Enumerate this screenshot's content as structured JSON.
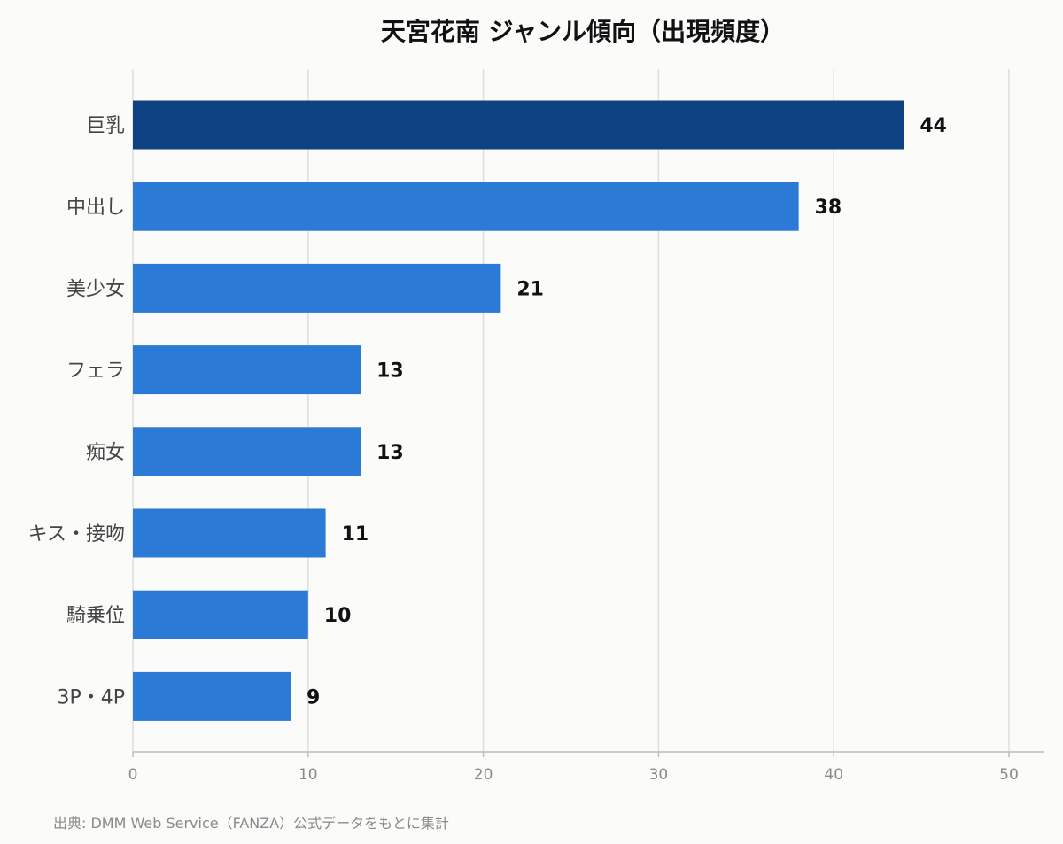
{
  "chart_data": {
    "type": "bar",
    "orientation": "horizontal",
    "title": "天宮花南 ジャンル傾向（出現頻度）",
    "categories": [
      "巨乳",
      "中出し",
      "美少女",
      "フェラ",
      "痴女",
      "キス・接吻",
      "騎乗位",
      "3P・4P"
    ],
    "values": [
      44,
      38,
      21,
      13,
      13,
      11,
      10,
      9
    ],
    "xlim": [
      0,
      52
    ],
    "xticks": [
      0,
      10,
      20,
      30,
      40,
      50
    ],
    "grid": true,
    "legend": "none",
    "colors": {
      "highlight": "#0f4282",
      "bar": "#2a7ad6"
    },
    "source": "出典: DMM Web Service（FANZA）公式データをもとに集計"
  }
}
